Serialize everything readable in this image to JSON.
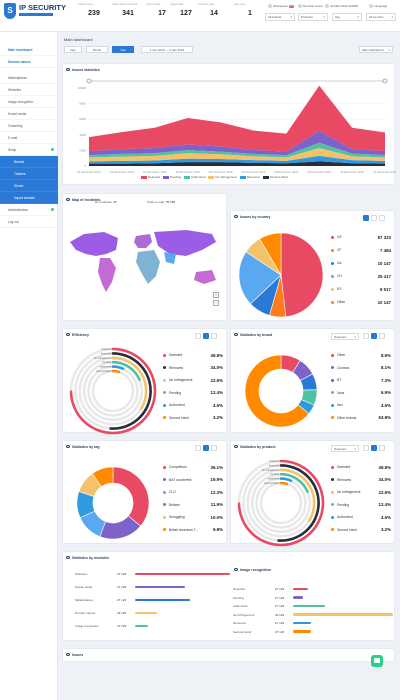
{
  "header": {
    "brand": "IP SECURITY",
    "stats": [
      {
        "label": "Active scans",
        "value": "239"
      },
      {
        "label": "Active stores scanned",
        "value": "341"
      },
      {
        "label": "Scans today",
        "value": "17"
      },
      {
        "label": "Pages total",
        "value": "127"
      },
      {
        "label": "Products total",
        "value": "14"
      },
      {
        "label": "Last scan",
        "value": "1"
      }
    ],
    "actions": {
      "notifications": "Workspace",
      "notif_count": "23",
      "profile": "Dominik Jesus",
      "user": "Jennifer Ruth ADMIN",
      "lang": "Language"
    },
    "filters": {
      "brands": "All brands",
      "products": "Products",
      "tag": "Tag",
      "security": "All security"
    }
  },
  "sidebar": {
    "items": [
      "Main dashboard",
      "Domain names",
      "Marketplaces",
      "Websites",
      "Image recognition",
      "Social media",
      "Clustering",
      "E-mail",
      "Setup",
      "Brands",
      "Themes",
      "Stores",
      "Import website",
      "Administration",
      "Log out"
    ]
  },
  "page": {
    "title": "Main dashboard",
    "range_buttons": [
      "Day",
      "Month",
      "Year"
    ],
    "date_range": "1 dec 2019 — 5 dec 2019",
    "dashboard_select": "Main dashboard"
  },
  "issues_stats": {
    "title": "Issues statistics",
    "chart_data": {
      "type": "area",
      "x": [
        "22 December 2019",
        "23 December 2019",
        "24 December 2019",
        "25 December 2019",
        "26 December 2019",
        "27 December 2019",
        "28 December 2019",
        "29 December 2019",
        "30 December 2019",
        "31 December 2019"
      ],
      "ylim": [
        0,
        10000
      ],
      "yticks": [
        "10000",
        "8000",
        "6000",
        "4000",
        "2000",
        "0"
      ],
      "series": [
        {
          "name": "Second Hand",
          "color": "#2b2b3a",
          "values": [
            300,
            300,
            350,
            500,
            500,
            400,
            350,
            600,
            350,
            300
          ]
        },
        {
          "name": "Removed",
          "color": "#2f9ae0",
          "values": [
            300,
            350,
            350,
            450,
            400,
            350,
            300,
            700,
            400,
            350
          ]
        },
        {
          "name": "No Infringement",
          "color": "#f3c26b",
          "values": [
            500,
            550,
            600,
            700,
            600,
            500,
            450,
            1000,
            500,
            450
          ]
        },
        {
          "name": "Authorized",
          "color": "#4fc3a1",
          "values": [
            300,
            350,
            350,
            400,
            350,
            300,
            300,
            700,
            350,
            300
          ]
        },
        {
          "name": "Pending",
          "color": "#7d62c9",
          "values": [
            500,
            600,
            650,
            700,
            650,
            500,
            450,
            1500,
            600,
            500
          ]
        },
        {
          "name": "Detected",
          "color": "#e84a63",
          "values": [
            1800,
            2200,
            2600,
            3400,
            3100,
            2500,
            2300,
            5800,
            2700,
            2400
          ]
        }
      ]
    },
    "legend": [
      "Detected",
      "Pending",
      "Authorized",
      "No Infringement",
      "Removed",
      "Second Hand"
    ]
  },
  "map": {
    "title": "Map of incidents",
    "countries_label": "Do countries",
    "countries_val": "47",
    "total_label": "Total on map",
    "total_val": "70 145",
    "zoom_in": "+",
    "zoom_out": "−"
  },
  "by_country": {
    "title": "Issues by country",
    "chart_data": {
      "type": "pie",
      "labels": [
        "US",
        "CF",
        "UA",
        "CH",
        "ES",
        "Other"
      ],
      "values": [
        57323,
        7484,
        10147,
        25417,
        8517,
        10147
      ],
      "colors": [
        "#e84a63",
        "#ff7a1a",
        "#2b79d6",
        "#5aa8f0",
        "#f3c26b",
        "#ff8a00"
      ]
    },
    "rows": [
      [
        "US",
        "57 323"
      ],
      [
        "CF",
        "7 484"
      ],
      [
        "UA",
        "10 147"
      ],
      [
        "CH",
        "25 417"
      ],
      [
        "ES",
        "8 517"
      ],
      [
        "Other",
        "10 147"
      ]
    ]
  },
  "efficiency": {
    "title": "Efficiency",
    "chart_data": {
      "type": "radial-bar",
      "labels": [
        "Detected",
        "Removed",
        "No Infringement",
        "Pending",
        "Authorized",
        "Second Hand"
      ],
      "values": [
        49.8,
        34.0,
        22.6,
        12.4,
        4.5,
        3.2
      ],
      "colors": [
        "#e84a63",
        "#2b2b3a",
        "#f3c26b",
        "#4fc3a1",
        "#2f9ae0",
        "#ff8a00"
      ]
    },
    "rows": [
      [
        "Detected",
        "49.8%"
      ],
      [
        "Removed",
        "34.0%"
      ],
      [
        "No Infringement",
        "22.6%"
      ],
      [
        "Pending",
        "12.4%"
      ],
      [
        "Authorized",
        "4.5%"
      ],
      [
        "Second Hand",
        "3.2%"
      ]
    ]
  },
  "by_brand": {
    "title": "Statistics by brand",
    "select": "Detected",
    "chart_data": {
      "type": "pie",
      "labels": [
        "Other",
        "Cosmos",
        "BT",
        "Vans",
        "Nex",
        "Other brands"
      ],
      "values": [
        8.9,
        8.1,
        7.3,
        6.9,
        4.5,
        63.8
      ],
      "colors": [
        "#e84a63",
        "#7d62c9",
        "#2b79d6",
        "#4fc3a1",
        "#2f9ae0",
        "#ff8a00"
      ]
    },
    "rows": [
      [
        "Other",
        "8.9%"
      ],
      [
        "Cosmos",
        "8.1%"
      ],
      [
        "BT",
        "7.3%"
      ],
      [
        "Vans",
        "6.9%"
      ],
      [
        "Nex",
        "4.5%"
      ],
      [
        "Other brands",
        "63.8%"
      ]
    ]
  },
  "by_tag": {
    "title": "Statistics by tag",
    "chart_data": {
      "type": "pie",
      "labels": [
        "Competitors",
        "BAT counterfeit",
        "CLO",
        "Belaine",
        "Smuggling",
        "British American T..."
      ],
      "values": [
        36.1,
        19.9,
        12.3,
        11.9,
        10.0,
        9.8
      ],
      "colors": [
        "#e84a63",
        "#7d62c9",
        "#5aa8f0",
        "#2f9ae0",
        "#f3c26b",
        "#ff8a00"
      ]
    },
    "rows": [
      [
        "Competitors",
        "36.1%"
      ],
      [
        "BAT counterfeit",
        "19.9%"
      ],
      [
        "CLO",
        "12.3%"
      ],
      [
        "Belaine",
        "11.9%"
      ],
      [
        "Smuggling",
        "10.0%"
      ],
      [
        "British American T...",
        "9.8%"
      ]
    ]
  },
  "by_product": {
    "title": "Statistics by product",
    "select": "Detected",
    "chart_data": {
      "type": "radial-bar",
      "labels": [
        "Detected",
        "Removed",
        "No Infringement",
        "Pending",
        "Authorized",
        "Second Hand"
      ],
      "values": [
        49.8,
        34.0,
        22.6,
        12.4,
        4.5,
        3.2
      ],
      "colors": [
        "#e84a63",
        "#2b2b3a",
        "#f3c26b",
        "#4fc3a1",
        "#2f9ae0",
        "#ff8a00"
      ]
    },
    "rows": [
      [
        "Detected",
        "49.8%"
      ],
      [
        "Removed",
        "34.0%"
      ],
      [
        "No Infringement",
        "22.6%"
      ],
      [
        "Pending",
        "12.4%"
      ],
      [
        "Authorized",
        "4.5%"
      ],
      [
        "Second Hand",
        "3.2%"
      ]
    ]
  },
  "by_modules": {
    "title": "Statistics by modules",
    "chart_data": {
      "type": "bar",
      "labels": [
        "Websites",
        "Social media",
        "Marketplaces",
        "Domain names",
        "Image recognition"
      ],
      "values": [
        27123,
        27123,
        27123,
        42123,
        27123
      ],
      "fill": [
        0.95,
        0.5,
        0.55,
        0.22,
        0.13
      ],
      "colors": [
        "#e84a63",
        "#7d62c9",
        "#2b79d6",
        "#f3c26b",
        "#4fc3a1"
      ]
    },
    "rows": [
      [
        "Websites",
        "27 123"
      ],
      [
        "Social media",
        "27 123"
      ],
      [
        "Marketplaces",
        "27 123"
      ],
      [
        "Domain names",
        "42 123"
      ],
      [
        "Image recognition",
        "27 123"
      ]
    ]
  },
  "image_recog": {
    "title": "Image recognition",
    "chart_data": {
      "type": "bar",
      "labels": [
        "Detected",
        "Pending",
        "Authorized",
        "No Infringement",
        "Removed",
        "Second Hand"
      ],
      "values": [
        27123,
        27123,
        27123,
        42123,
        27123,
        27123
      ],
      "fill": [
        0.15,
        0.1,
        0.32,
        1.0,
        0.18,
        0.18
      ],
      "colors": [
        "#e84a63",
        "#7d62c9",
        "#4fc3a1",
        "#f3c26b",
        "#2f9ae0",
        "#ff8a00"
      ]
    },
    "rows": [
      [
        "Detected",
        "27 123"
      ],
      [
        "Pending",
        "27 123"
      ],
      [
        "Authorized",
        "27 123"
      ],
      [
        "No Infringement",
        "42 123"
      ],
      [
        "Removed",
        "27 123"
      ],
      [
        "Second Hand",
        "27 123"
      ]
    ]
  },
  "issues": {
    "title": "Issues"
  }
}
